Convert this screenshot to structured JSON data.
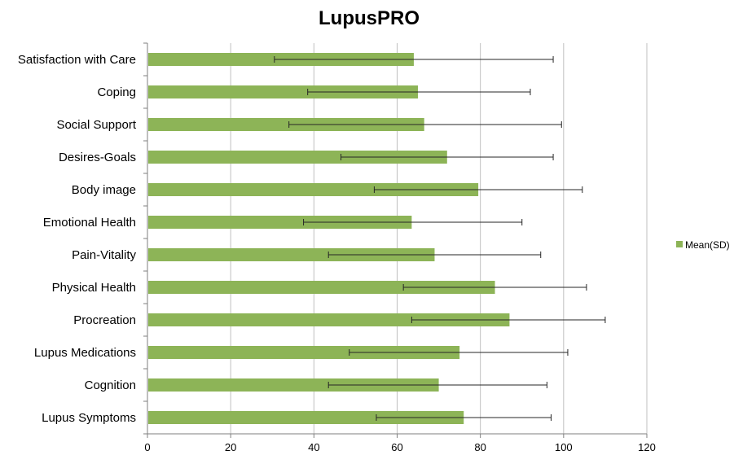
{
  "chart_data": {
    "type": "bar",
    "orientation": "horizontal",
    "title": "LupusPRO",
    "xlabel": "",
    "ylabel": "",
    "xlim": [
      0,
      120
    ],
    "xticks": [
      "0",
      "20",
      "40",
      "60",
      "80",
      "100",
      "120"
    ],
    "grid": true,
    "legend_position": "right",
    "categories": [
      "Satisfaction with Care",
      "Coping",
      "Social Support",
      "Desires-Goals",
      "Body image",
      "Emotional Health",
      "Pain-Vitality",
      "Physical Health",
      "Procreation",
      "Lupus Medications",
      "Cognition",
      "Lupus Symptoms"
    ],
    "series": [
      {
        "name": "Mean(SD)",
        "color": "#8db457",
        "values": [
          64,
          65,
          66.5,
          72,
          79.5,
          63.5,
          69,
          83.5,
          87,
          75,
          70,
          76
        ],
        "error_low": [
          30.5,
          38.5,
          34,
          46.5,
          54.5,
          37.5,
          43.5,
          61.5,
          63.5,
          48.5,
          43.5,
          55
        ],
        "error_high": [
          97.5,
          92,
          99.5,
          97.5,
          104.5,
          90,
          94.5,
          105.5,
          110,
          101,
          96,
          97
        ]
      }
    ]
  }
}
